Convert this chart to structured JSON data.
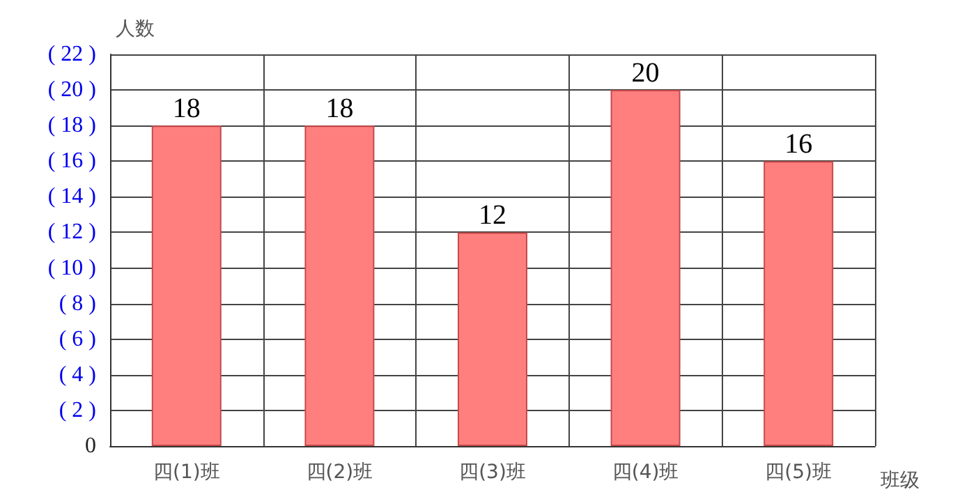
{
  "chart_data": {
    "type": "bar",
    "xlabel": "班级",
    "ylabel": "人数",
    "categories": [
      "四(1)班",
      "四(2)班",
      "四(3)班",
      "四(4)班",
      "四(5)班"
    ],
    "values": [
      18,
      18,
      12,
      20,
      16
    ],
    "color": "#ff7f7f",
    "data_labels": true,
    "grid": true,
    "ylim": [
      0,
      22
    ],
    "yticks": [
      0,
      {
        "value": 2,
        "label": "( 2 )"
      },
      {
        "value": 4,
        "label": "( 4 )"
      },
      {
        "value": 6,
        "label": "( 6 )"
      },
      {
        "value": 8,
        "label": "( 8 )"
      },
      {
        "value": 10,
        "label": "( 10 )"
      },
      {
        "value": 12,
        "label": "( 12 )"
      },
      {
        "value": 14,
        "label": "( 14 )"
      },
      {
        "value": 16,
        "label": "( 16 )"
      },
      {
        "value": 18,
        "label": "( 18 )"
      },
      {
        "value": 20,
        "label": "( 20 )"
      },
      {
        "value": 22,
        "label": "( 22 )"
      }
    ]
  }
}
